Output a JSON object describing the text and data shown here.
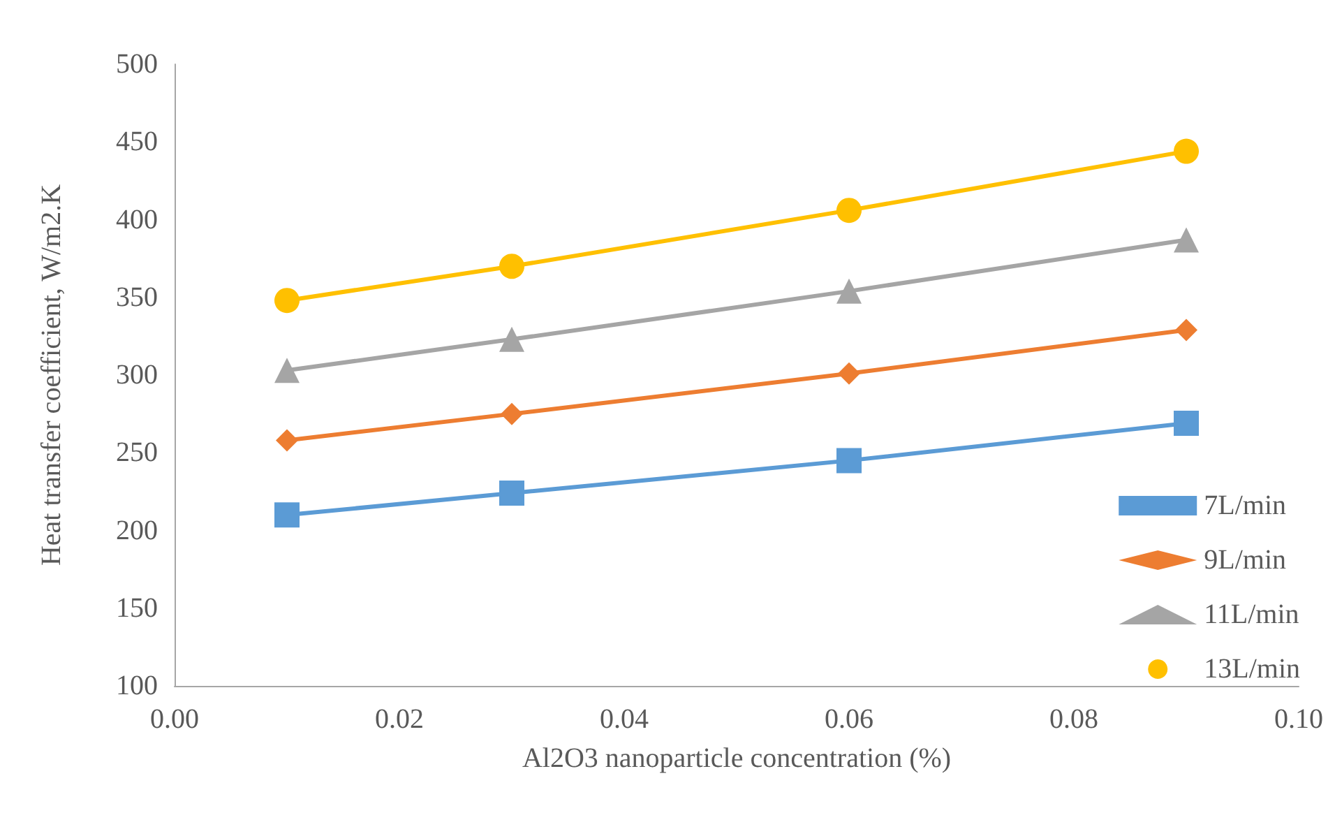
{
  "chart_data": {
    "type": "line",
    "xlabel": "Al2O3 nanoparticle concentration (%)",
    "ylabel": "Heat transfer coefficient, W/m2.K",
    "x": [
      0.01,
      0.03,
      0.06,
      0.09
    ],
    "xlim": [
      0,
      0.1
    ],
    "xticks": [
      {
        "value": 0,
        "label": "0.00"
      },
      {
        "value": 0.02,
        "label": "0.02"
      },
      {
        "value": 0.04,
        "label": "0.04"
      },
      {
        "value": 0.06,
        "label": "0.06"
      },
      {
        "value": 0.08,
        "label": "0.08"
      },
      {
        "value": 0.1,
        "label": "0.10"
      }
    ],
    "ylim": [
      100,
      500
    ],
    "yticks": [
      100,
      150,
      200,
      250,
      300,
      350,
      400,
      450,
      500
    ],
    "grid": false,
    "legend": "bottom right",
    "series": [
      {
        "name": "7L/min",
        "color": "#5b9bd5",
        "marker": "square",
        "values": [
          210,
          224,
          245,
          269
        ]
      },
      {
        "name": "9L/min",
        "color": "#ed7d31",
        "marker": "diamond",
        "values": [
          258,
          275,
          301,
          329
        ]
      },
      {
        "name": "11L/min",
        "color": "#a5a5a5",
        "marker": "triangle",
        "values": [
          303,
          323,
          354,
          387
        ]
      },
      {
        "name": "13L/min",
        "color": "#ffc000",
        "marker": "circle",
        "values": [
          348,
          370,
          406,
          444
        ]
      }
    ]
  }
}
